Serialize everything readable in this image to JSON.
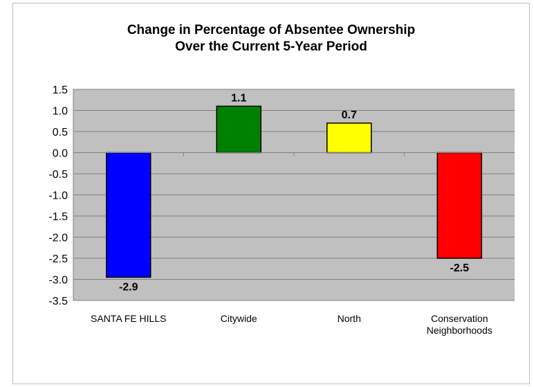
{
  "colors": {
    "plot_background": "#c0c0c0",
    "gridline": "#808080",
    "frame_border": "#bfbfbf"
  },
  "chart_data": {
    "type": "bar",
    "title_lines": [
      "Change in Percentage of Absentee Ownership",
      "Over the Current 5-Year Period"
    ],
    "xlabel": "",
    "ylabel": "",
    "ylim": [
      -3.5,
      1.5
    ],
    "y_tick_step": 0.5,
    "y_tick_labels": [
      "1.5",
      "1.0",
      "0.5",
      "0.0",
      "-0.5",
      "-1.0",
      "-1.5",
      "-2.0",
      "-2.5",
      "-3.0",
      "-3.5"
    ],
    "grid": true,
    "legend": "none",
    "categories": [
      [
        "SANTA FE HILLS"
      ],
      [
        "Citywide"
      ],
      [
        "North"
      ],
      [
        "Conservation",
        "Neighborhoods"
      ]
    ],
    "values": [
      -2.95,
      1.1,
      0.7,
      -2.5
    ],
    "data_labels": [
      "-2.9",
      "1.1",
      "0.7",
      "-2.5"
    ],
    "bar_colors": [
      "#0000ff",
      "#008000",
      "#ffff00",
      "#ff0000"
    ]
  }
}
